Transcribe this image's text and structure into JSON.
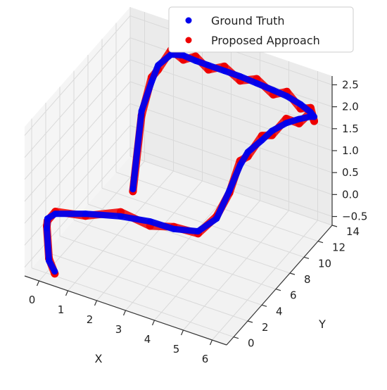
{
  "chart_data": {
    "type": "line",
    "projection": "3d",
    "grid": true,
    "xlabel": "X",
    "ylabel": "Y",
    "zlabel": "",
    "xlim": [
      -0.5,
      6.5
    ],
    "ylim": [
      -1,
      14
    ],
    "zlim": [
      -0.7,
      2.7
    ],
    "xticks": [
      "0",
      "1",
      "2",
      "3",
      "4",
      "5",
      "6"
    ],
    "yticks": [
      "0",
      "2",
      "4",
      "6",
      "8",
      "10",
      "12",
      "14"
    ],
    "zticks": [
      "−0.5",
      "0.0",
      "0.5",
      "1.0",
      "1.5",
      "2.0",
      "2.5"
    ],
    "legend": {
      "position": "upper right"
    },
    "series": [
      {
        "name": "Ground Truth",
        "color": "#0000ee",
        "x": [
          0.3,
          0.1,
          0.0,
          0.0,
          0.2,
          1.0,
          2.0,
          2.8,
          3.4,
          4.0,
          4.4,
          4.6,
          4.7,
          4.7,
          4.9,
          5.0,
          5.3,
          5.6,
          5.9,
          6.0,
          5.9,
          5.6,
          5.2,
          4.8,
          4.3,
          3.8,
          3.3,
          2.8,
          2.4,
          2.0,
          1.6,
          1.2,
          1.0,
          0.7,
          0.45
        ],
        "y": [
          0.0,
          0.0,
          0.1,
          0.2,
          0.5,
          1.5,
          2.4,
          3.3,
          4.2,
          5.2,
          6.2,
          7.2,
          8.3,
          9.4,
          10.6,
          11.6,
          12.4,
          13.0,
          13.4,
          13.5,
          13.4,
          13.2,
          12.9,
          12.6,
          12.3,
          12.0,
          11.8,
          11.6,
          11.4,
          11.3,
          11.2,
          11.0,
          10.9,
          10.7,
          10.5
        ],
        "z": [
          -0.6,
          -0.4,
          0.3,
          0.5,
          0.6,
          0.6,
          0.6,
          0.5,
          0.3,
          0.2,
          0.4,
          0.9,
          1.3,
          1.4,
          1.5,
          1.55,
          1.65,
          1.7,
          1.75,
          1.75,
          1.85,
          2.0,
          2.15,
          2.25,
          2.35,
          2.45,
          2.5,
          2.55,
          2.6,
          2.65,
          2.6,
          2.3,
          1.9,
          1.2,
          -0.6
        ]
      },
      {
        "name": "Proposed Approach",
        "color": "#ee0000",
        "x": [
          0.3,
          0.1,
          0.0,
          0.0,
          0.2,
          1.0,
          2.0,
          2.8,
          3.4,
          4.0,
          4.4,
          4.6,
          4.7,
          4.7,
          4.9,
          5.0,
          5.3,
          5.6,
          5.9,
          6.0,
          5.9,
          5.6,
          5.2,
          4.8,
          4.3,
          3.8,
          3.3,
          2.8,
          2.4,
          2.0,
          1.6,
          1.2,
          1.0,
          0.7,
          0.45
        ],
        "y": [
          0.0,
          0.0,
          0.1,
          0.2,
          0.5,
          1.5,
          2.4,
          3.3,
          4.2,
          5.2,
          6.2,
          7.2,
          8.3,
          9.4,
          10.6,
          11.6,
          12.4,
          13.0,
          13.4,
          13.5,
          13.4,
          13.2,
          12.9,
          12.6,
          12.3,
          12.0,
          11.8,
          11.6,
          11.4,
          11.3,
          11.2,
          11.0,
          10.9,
          10.7,
          10.5
        ],
        "z": [
          -0.65,
          -0.35,
          0.35,
          0.45,
          0.65,
          0.55,
          0.7,
          0.4,
          0.35,
          0.15,
          0.45,
          0.85,
          1.4,
          1.3,
          1.6,
          1.45,
          1.75,
          1.6,
          1.85,
          1.65,
          1.95,
          1.9,
          2.25,
          2.15,
          2.45,
          2.35,
          2.6,
          2.45,
          2.7,
          2.55,
          2.7,
          2.2,
          2.0,
          1.1,
          -0.65
        ]
      }
    ]
  }
}
